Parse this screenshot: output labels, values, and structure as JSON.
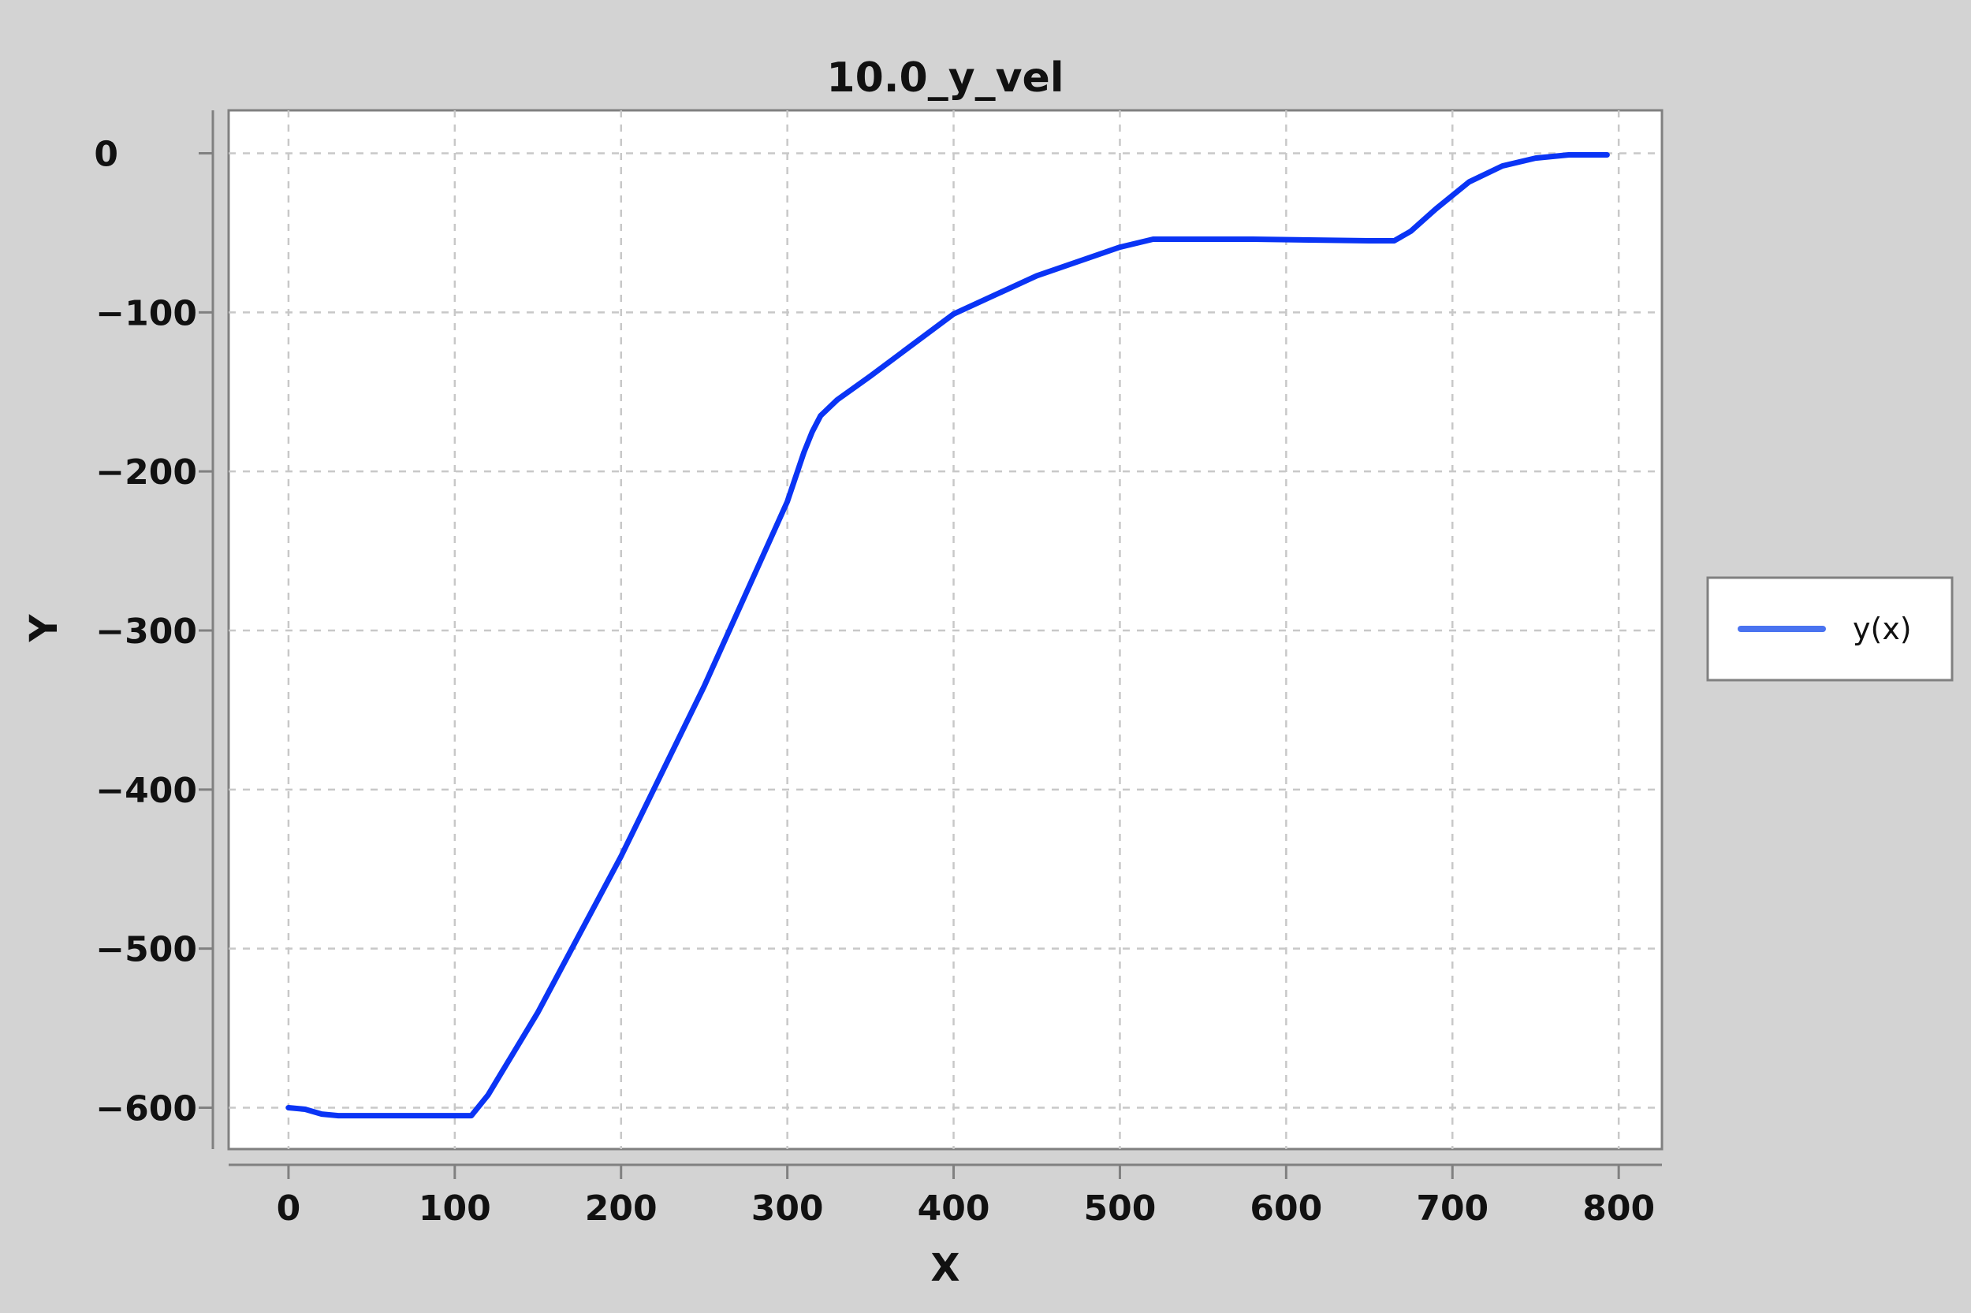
{
  "chart_data": {
    "type": "line",
    "title": "10.0_y_vel",
    "xlabel": "X",
    "ylabel": "Y",
    "xlim": [
      -36,
      826
    ],
    "ylim": [
      -626,
      27
    ],
    "xticks": [
      0,
      100,
      200,
      300,
      400,
      500,
      600,
      700,
      800
    ],
    "yticks": [
      0,
      -100,
      -200,
      -300,
      -400,
      -500,
      -600
    ],
    "xtick_labels": [
      "0",
      "100",
      "200",
      "300",
      "400",
      "500",
      "600",
      "700",
      "800"
    ],
    "ytick_labels": [
      "0",
      "−100",
      "−200",
      "−300",
      "−400",
      "−500",
      "−600"
    ],
    "grid": true,
    "legend_position": "right",
    "series": [
      {
        "name": "y(x)",
        "color": "#0a34f5",
        "x": [
          0,
          10,
          20,
          30,
          40,
          60,
          80,
          100,
          110,
          120,
          150,
          200,
          250,
          300,
          310,
          315,
          320,
          330,
          350,
          400,
          450,
          500,
          520,
          580,
          650,
          665,
          675,
          690,
          710,
          730,
          750,
          770,
          793
        ],
        "y": [
          -600,
          -601,
          -604,
          -605,
          -605,
          -605,
          -605,
          -605,
          -605,
          -592,
          -540,
          -442,
          -335,
          -219,
          -188,
          -175,
          -165,
          -155,
          -140,
          -101,
          -77,
          -59,
          -54,
          -54,
          -55,
          -55,
          -49,
          -35,
          -18,
          -8,
          -3,
          -1,
          -1
        ]
      }
    ]
  }
}
